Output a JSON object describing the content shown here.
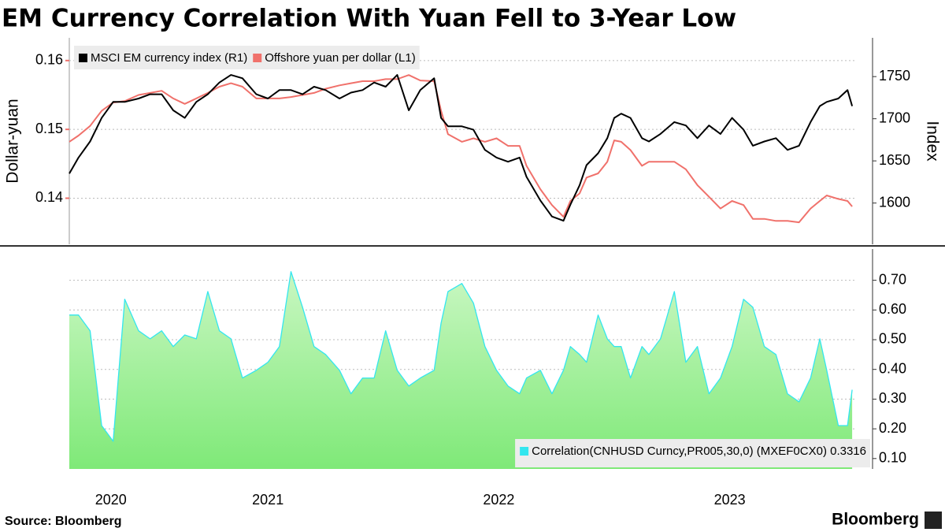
{
  "chart_data": [
    {
      "type": "line",
      "title": "EM Currency Correlation With Yuan Fell to 3-Year Low",
      "ylabel": "Dollar-yuan",
      "y2label": "Index",
      "x": [
        2020.64,
        2020.68,
        2020.73,
        2020.78,
        2020.83,
        2020.88,
        2020.94,
        2020.99,
        2021.04,
        2021.09,
        2021.14,
        2021.19,
        2021.24,
        2021.29,
        2021.34,
        2021.39,
        2021.45,
        2021.5,
        2021.55,
        2021.6,
        2021.65,
        2021.7,
        2021.75,
        2021.81,
        2021.86,
        2021.91,
        2021.96,
        2022.01,
        2022.06,
        2022.11,
        2022.16,
        2022.22,
        2022.25,
        2022.28,
        2022.34,
        2022.39,
        2022.44,
        2022.49,
        2022.54,
        2022.59,
        2022.62,
        2022.68,
        2022.73,
        2022.78,
        2022.81,
        2022.85,
        2022.88,
        2022.93,
        2022.97,
        2023.0,
        2023.03,
        2023.07,
        2023.12,
        2023.15,
        2023.2,
        2023.26,
        2023.31,
        2023.36,
        2023.41,
        2023.46,
        2023.51,
        2023.56,
        2023.6,
        2023.65,
        2023.7,
        2023.75,
        2023.8,
        2023.85,
        2023.89,
        2023.92,
        2023.97,
        2024.01,
        2024.03
      ],
      "xlim": [
        2020.64,
        2024.04
      ],
      "series": [
        {
          "name": "MSCI EM currency index (R1)",
          "color": "#000000",
          "axis": "y2",
          "values": [
            1635,
            1654,
            1673,
            1701,
            1720,
            1720,
            1724,
            1729,
            1729,
            1710,
            1701,
            1720,
            1729,
            1743,
            1752,
            1748,
            1729,
            1724,
            1734,
            1734,
            1729,
            1738,
            1734,
            1724,
            1731,
            1734,
            1743,
            1738,
            1752,
            1710,
            1734,
            1748,
            1701,
            1691,
            1691,
            1687,
            1663,
            1654,
            1649,
            1654,
            1631,
            1603,
            1584,
            1579,
            1598,
            1621,
            1645,
            1659,
            1677,
            1701,
            1706,
            1701,
            1677,
            1673,
            1682,
            1696,
            1692,
            1677,
            1692,
            1682,
            1701,
            1687,
            1668,
            1673,
            1677,
            1663,
            1668,
            1696,
            1715,
            1720,
            1724,
            1734,
            1715
          ]
        },
        {
          "name": "Offshore yuan per dollar (L1)",
          "color": "#f0716b",
          "axis": "y",
          "values": [
            0.1482,
            0.1491,
            0.1505,
            0.1527,
            0.1539,
            0.1541,
            0.155,
            0.1553,
            0.1556,
            0.1545,
            0.1537,
            0.1545,
            0.1553,
            0.1562,
            0.1567,
            0.1562,
            0.1545,
            0.1545,
            0.1545,
            0.1547,
            0.155,
            0.1553,
            0.1559,
            0.1564,
            0.1567,
            0.157,
            0.157,
            0.1573,
            0.1573,
            0.1579,
            0.1571,
            0.157,
            0.1527,
            0.1493,
            0.1482,
            0.1487,
            0.1482,
            0.1487,
            0.1476,
            0.1476,
            0.1447,
            0.1413,
            0.139,
            0.1373,
            0.1396,
            0.1407,
            0.143,
            0.1436,
            0.1453,
            0.1484,
            0.1482,
            0.147,
            0.1447,
            0.1453,
            0.1453,
            0.1453,
            0.1442,
            0.1419,
            0.1402,
            0.1385,
            0.1396,
            0.139,
            0.137,
            0.137,
            0.1367,
            0.1367,
            0.1365,
            0.1385,
            0.1396,
            0.1404,
            0.1399,
            0.1396,
            0.1388
          ]
        }
      ],
      "ylim": [
        0.1333,
        0.1633
      ],
      "yticks": [
        0.14,
        0.15,
        0.16
      ],
      "y2lim": [
        1551,
        1796
      ],
      "y2ticks": [
        1600,
        1650,
        1700,
        1750
      ],
      "grid": true,
      "legend": "top-left"
    },
    {
      "type": "area",
      "x": [
        2020.64,
        2020.68,
        2020.73,
        2020.78,
        2020.83,
        2020.88,
        2020.94,
        2020.99,
        2021.04,
        2021.09,
        2021.14,
        2021.19,
        2021.24,
        2021.29,
        2021.34,
        2021.39,
        2021.45,
        2021.5,
        2021.55,
        2021.6,
        2021.65,
        2021.7,
        2021.75,
        2021.81,
        2021.86,
        2021.91,
        2021.96,
        2022.01,
        2022.06,
        2022.11,
        2022.16,
        2022.22,
        2022.25,
        2022.28,
        2022.34,
        2022.39,
        2022.44,
        2022.49,
        2022.54,
        2022.59,
        2022.62,
        2022.68,
        2022.73,
        2022.78,
        2022.81,
        2022.85,
        2022.88,
        2022.93,
        2022.97,
        2023.0,
        2023.03,
        2023.07,
        2023.12,
        2023.15,
        2023.2,
        2023.26,
        2023.31,
        2023.36,
        2023.41,
        2023.46,
        2023.51,
        2023.56,
        2023.6,
        2023.65,
        2023.7,
        2023.75,
        2023.8,
        2023.85,
        2023.89,
        2023.92,
        2023.97,
        2024.01,
        2024.03
      ],
      "xlim": [
        2020.64,
        2024.04
      ],
      "x_labels": [
        "2020",
        "2021",
        "2022",
        "2023"
      ],
      "series": [
        {
          "name": "Correlation(CNHUSD Curncy,PR005,30,0) (MXEF0CX0) 0.3316",
          "color": "#33e6ef",
          "values": [
            0.583,
            0.583,
            0.53,
            0.211,
            0.158,
            0.636,
            0.53,
            0.503,
            0.53,
            0.477,
            0.516,
            0.503,
            0.662,
            0.53,
            0.503,
            0.371,
            0.397,
            0.424,
            0.477,
            0.729,
            0.609,
            0.477,
            0.45,
            0.397,
            0.318,
            0.371,
            0.371,
            0.53,
            0.397,
            0.344,
            0.371,
            0.397,
            0.556,
            0.662,
            0.689,
            0.623,
            0.477,
            0.397,
            0.344,
            0.318,
            0.371,
            0.397,
            0.318,
            0.397,
            0.477,
            0.45,
            0.424,
            0.583,
            0.503,
            0.477,
            0.477,
            0.371,
            0.477,
            0.45,
            0.503,
            0.662,
            0.424,
            0.477,
            0.318,
            0.371,
            0.477,
            0.636,
            0.609,
            0.477,
            0.45,
            0.318,
            0.291,
            0.371,
            0.503,
            0.397,
            0.211,
            0.211,
            0.3316
          ]
        }
      ],
      "ylim": [
        0.065,
        0.805
      ],
      "yticks": [
        {
          "value": 0.1,
          "label": "0.10"
        },
        {
          "value": 0.2,
          "label": "0.20"
        },
        {
          "value": 0.3,
          "label": "0.30"
        },
        {
          "value": 0.4,
          "label": "0.40"
        },
        {
          "value": 0.5,
          "label": "0.50"
        },
        {
          "value": 0.6,
          "label": "0.60"
        },
        {
          "value": 0.7,
          "label": "0.70"
        }
      ],
      "grid": true,
      "legend": "bottom-right"
    }
  ],
  "source": "Source: Bloomberg",
  "brand": "Bloomberg"
}
